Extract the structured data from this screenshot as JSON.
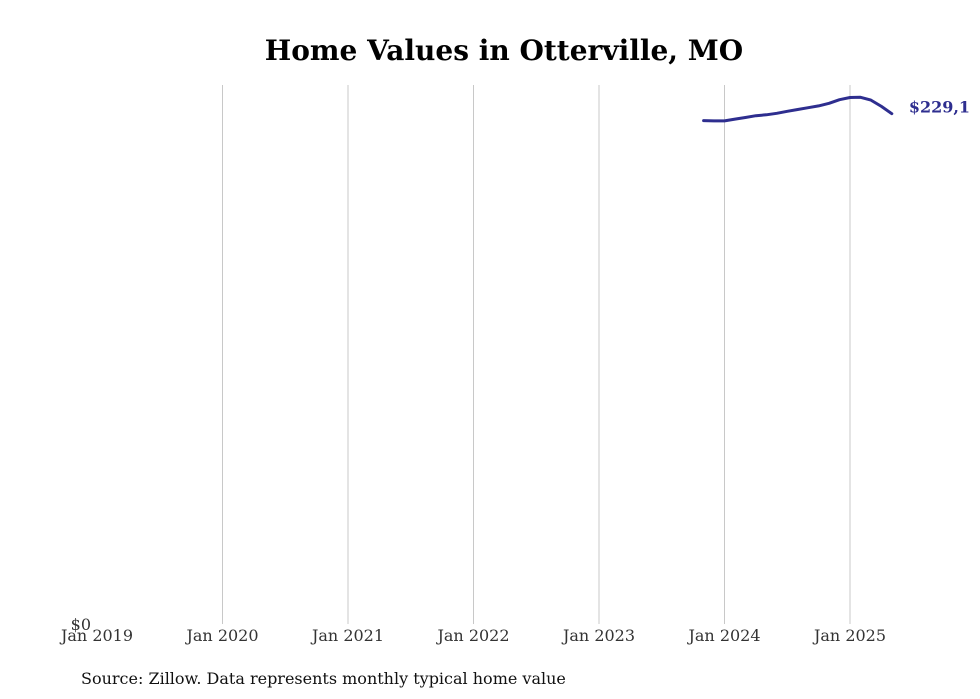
{
  "chart_data": {
    "type": "line",
    "title": "Home Values in Otterville, MO",
    "xlabel": "",
    "ylabel": "",
    "x_ticks": [
      "Jan 2019",
      "Jan 2020",
      "Jan 2021",
      "Jan 2022",
      "Jan 2023",
      "Jan 2024",
      "Jan 2025"
    ],
    "y_ticks": [
      "$0"
    ],
    "xlim": [
      "2019-01",
      "2025-08"
    ],
    "ylim": [
      0,
      242000
    ],
    "grid": "vertical",
    "series": [
      {
        "color": "#2E2E8F",
        "end_label": "$229,1",
        "points": [
          {
            "x": "2023-11",
            "y": 226000
          },
          {
            "x": "2023-12",
            "y": 225900
          },
          {
            "x": "2024-01",
            "y": 225900
          },
          {
            "x": "2024-02",
            "y": 226700
          },
          {
            "x": "2024-03",
            "y": 227400
          },
          {
            "x": "2024-04",
            "y": 228200
          },
          {
            "x": "2024-05",
            "y": 228600
          },
          {
            "x": "2024-06",
            "y": 229300
          },
          {
            "x": "2024-07",
            "y": 230200
          },
          {
            "x": "2024-08",
            "y": 231000
          },
          {
            "x": "2024-09",
            "y": 231800
          },
          {
            "x": "2024-10",
            "y": 232600
          },
          {
            "x": "2024-11",
            "y": 233800
          },
          {
            "x": "2024-12",
            "y": 235400
          },
          {
            "x": "2025-01",
            "y": 236400
          },
          {
            "x": "2025-02",
            "y": 236500
          },
          {
            "x": "2025-03",
            "y": 235200
          },
          {
            "x": "2025-04",
            "y": 232400
          },
          {
            "x": "2025-05",
            "y": 229100
          }
        ]
      }
    ]
  },
  "source_note": "Source: Zillow. Data represents monthly typical home value"
}
